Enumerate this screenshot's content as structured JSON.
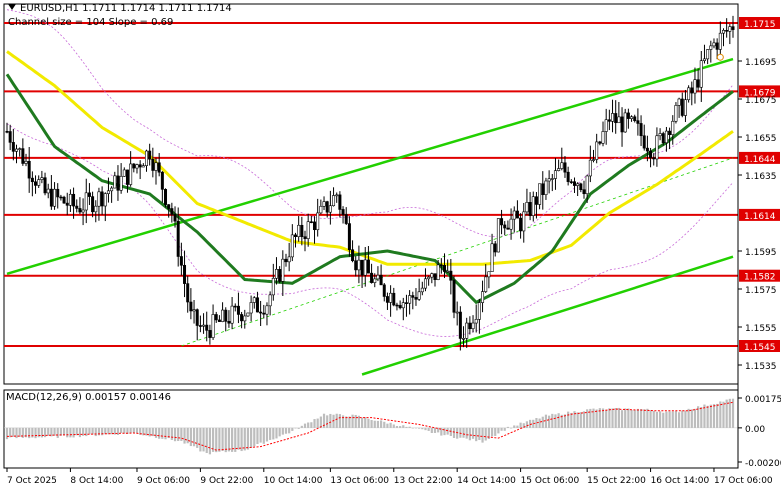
{
  "header": {
    "symbol_line": "EURUSD,H1  1.1711 1.1714 1.1711 1.1714",
    "channel_line": "Channel size = 104 Slope = 0.69"
  },
  "macd": {
    "label": "MACD(12,26,9) 0.00157 0.00146",
    "ticks": [
      "0.00175",
      "0.00",
      "-0.00200"
    ]
  },
  "price_axis": {
    "ticks": [
      "1.1695",
      "1.1675",
      "1.1655",
      "1.1635",
      "1.1595",
      "1.1575",
      "1.1555",
      "1.1535"
    ]
  },
  "time_axis": {
    "labels": [
      "7 Oct 2025",
      "8 Oct 14:00",
      "9 Oct 06:00",
      "9 Oct 22:00",
      "10 Oct 14:00",
      "13 Oct 06:00",
      "13 Oct 22:00",
      "14 Oct 14:00",
      "15 Oct 06:00",
      "15 Oct 22:00",
      "16 Oct 14:00",
      "17 Oct 06:00"
    ]
  },
  "levels": [
    {
      "label": "1.1715",
      "value": 1.1715
    },
    {
      "label": "1.1679",
      "value": 1.1679
    },
    {
      "label": "1.1644",
      "value": 1.1644
    },
    {
      "label": "1.1614",
      "value": 1.1614
    },
    {
      "label": "1.1582",
      "value": 1.1582
    },
    {
      "label": "1.1545",
      "value": 1.1545
    }
  ],
  "colors": {
    "level": "#e00000",
    "channel": "#22d000",
    "ma_fast": "#1f7a1f",
    "ma_slow": "#f2ea00",
    "envelope": "#c86ad8",
    "candle": "#000000",
    "macd_hist": "#bdbdbd",
    "macd_signal": "#ff0000"
  },
  "chart_data": {
    "type": "candlestick",
    "symbol": "EURUSD",
    "timeframe": "H1",
    "ylim": [
      1.1525,
      1.1725
    ],
    "bars": 230,
    "close_path": [
      [
        0,
        1.1658
      ],
      [
        12,
        1.1625
      ],
      [
        22,
        1.1618
      ],
      [
        28,
        1.1622
      ],
      [
        38,
        1.1635
      ],
      [
        45,
        1.1648
      ],
      [
        52,
        1.1615
      ],
      [
        58,
        1.156
      ],
      [
        62,
        1.1553
      ],
      [
        72,
        1.1562
      ],
      [
        82,
        1.1568
      ],
      [
        90,
        1.16
      ],
      [
        98,
        1.1612
      ],
      [
        104,
        1.1625
      ],
      [
        110,
        1.159
      ],
      [
        118,
        1.1575
      ],
      [
        126,
        1.1568
      ],
      [
        134,
        1.158
      ],
      [
        138,
        1.159
      ],
      [
        143,
        1.155
      ],
      [
        148,
        1.1565
      ],
      [
        156,
        1.1612
      ],
      [
        162,
        1.161
      ],
      [
        168,
        1.1625
      ],
      [
        175,
        1.1638
      ],
      [
        182,
        1.163
      ],
      [
        190,
        1.1665
      ],
      [
        198,
        1.166
      ],
      [
        204,
        1.1648
      ],
      [
        210,
        1.1665
      ],
      [
        216,
        1.1678
      ],
      [
        222,
        1.1702
      ],
      [
        229,
        1.1714
      ]
    ],
    "ma_fast": [
      [
        0,
        1.1688
      ],
      [
        15,
        1.165
      ],
      [
        30,
        1.1632
      ],
      [
        45,
        1.1625
      ],
      [
        60,
        1.1605
      ],
      [
        75,
        1.158
      ],
      [
        90,
        1.1578
      ],
      [
        105,
        1.1592
      ],
      [
        120,
        1.1595
      ],
      [
        135,
        1.159
      ],
      [
        148,
        1.1568
      ],
      [
        160,
        1.1578
      ],
      [
        172,
        1.1595
      ],
      [
        184,
        1.1625
      ],
      [
        196,
        1.164
      ],
      [
        208,
        1.1652
      ],
      [
        218,
        1.1665
      ],
      [
        229,
        1.1679
      ]
    ],
    "ma_slow": [
      [
        0,
        1.17
      ],
      [
        15,
        1.1682
      ],
      [
        30,
        1.166
      ],
      [
        45,
        1.1645
      ],
      [
        60,
        1.162
      ],
      [
        75,
        1.161
      ],
      [
        90,
        1.16
      ],
      [
        105,
        1.1597
      ],
      [
        120,
        1.1588
      ],
      [
        135,
        1.1588
      ],
      [
        150,
        1.1588
      ],
      [
        165,
        1.159
      ],
      [
        178,
        1.1598
      ],
      [
        190,
        1.1615
      ],
      [
        205,
        1.163
      ],
      [
        218,
        1.1645
      ],
      [
        229,
        1.1658
      ]
    ],
    "channel_upper": [
      [
        0,
        1.1583
      ],
      [
        229,
        1.1696
      ]
    ],
    "channel_lower": [
      [
        112,
        1.153
      ],
      [
        229,
        1.1592
      ]
    ],
    "channel_mid": [
      [
        55,
        1.1545
      ],
      [
        229,
        1.1644
      ]
    ],
    "macd_hist_path": [
      [
        0,
        -0.0006
      ],
      [
        20,
        -0.0005
      ],
      [
        40,
        -0.0003
      ],
      [
        55,
        -0.0008
      ],
      [
        63,
        -0.0015
      ],
      [
        75,
        -0.0013
      ],
      [
        90,
        -0.0002
      ],
      [
        100,
        0.0008
      ],
      [
        110,
        0.0007
      ],
      [
        125,
        0.0001
      ],
      [
        140,
        -0.0005
      ],
      [
        150,
        -0.0008
      ],
      [
        158,
        0.0
      ],
      [
        170,
        0.0007
      ],
      [
        185,
        0.0011
      ],
      [
        200,
        0.0011
      ],
      [
        210,
        0.0009
      ],
      [
        220,
        0.0013
      ],
      [
        229,
        0.0017
      ]
    ],
    "macd_signal_path": [
      [
        0,
        -0.0005
      ],
      [
        20,
        -0.0004
      ],
      [
        40,
        -0.0003
      ],
      [
        55,
        -0.0006
      ],
      [
        66,
        -0.0013
      ],
      [
        80,
        -0.0011
      ],
      [
        95,
        -0.0003
      ],
      [
        105,
        0.0006
      ],
      [
        115,
        0.0006
      ],
      [
        130,
        0.0002
      ],
      [
        145,
        -0.0004
      ],
      [
        155,
        -0.0006
      ],
      [
        165,
        0.0002
      ],
      [
        178,
        0.0008
      ],
      [
        192,
        0.0011
      ],
      [
        205,
        0.001
      ],
      [
        215,
        0.001
      ],
      [
        229,
        0.0015
      ]
    ]
  }
}
